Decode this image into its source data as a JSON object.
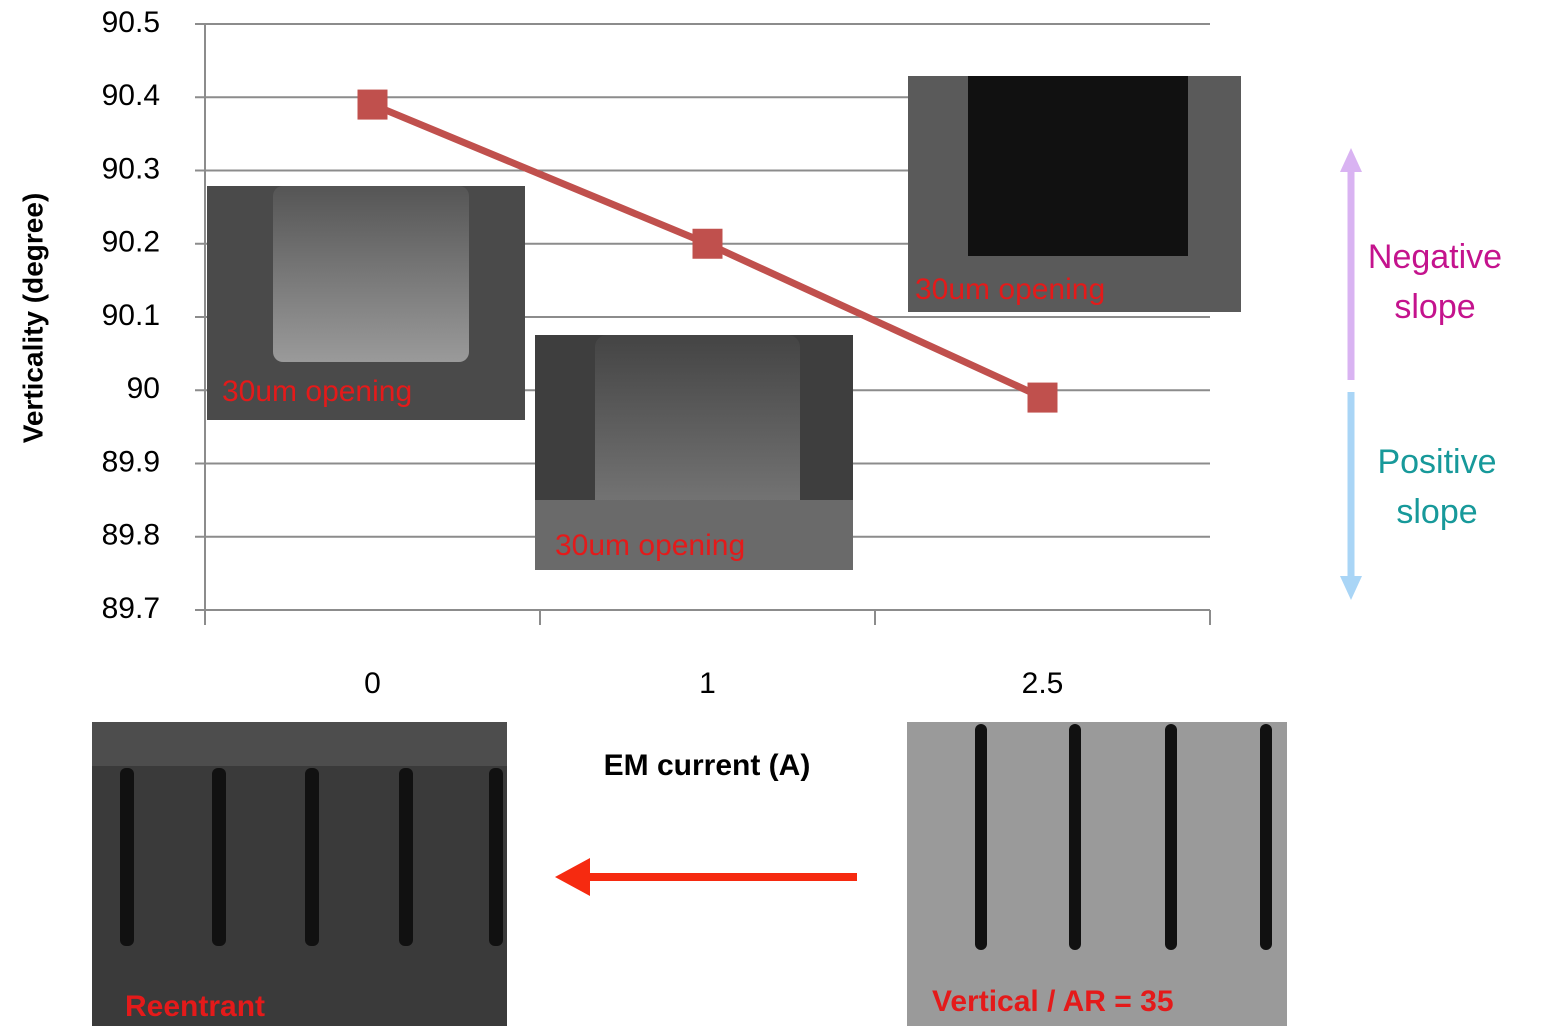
{
  "chart_data": {
    "type": "line",
    "y_label": "Verticality (degree)",
    "x_label": "EM current (A)",
    "categories": [
      "0",
      "1",
      "2.5"
    ],
    "values": [
      90.39,
      90.2,
      89.99
    ],
    "color": "#c0504d",
    "ylim": [
      89.7,
      90.5
    ],
    "yticks": [
      89.7,
      89.8,
      89.9,
      90,
      90.1,
      90.2,
      90.3,
      90.4,
      90.5
    ],
    "grid": true,
    "annotations": [
      "30um opening",
      "30um opening",
      "30um opening",
      "Reentrant",
      "Vertical / AR = 35",
      "Negative slope",
      "Positive slope"
    ]
  }
}
